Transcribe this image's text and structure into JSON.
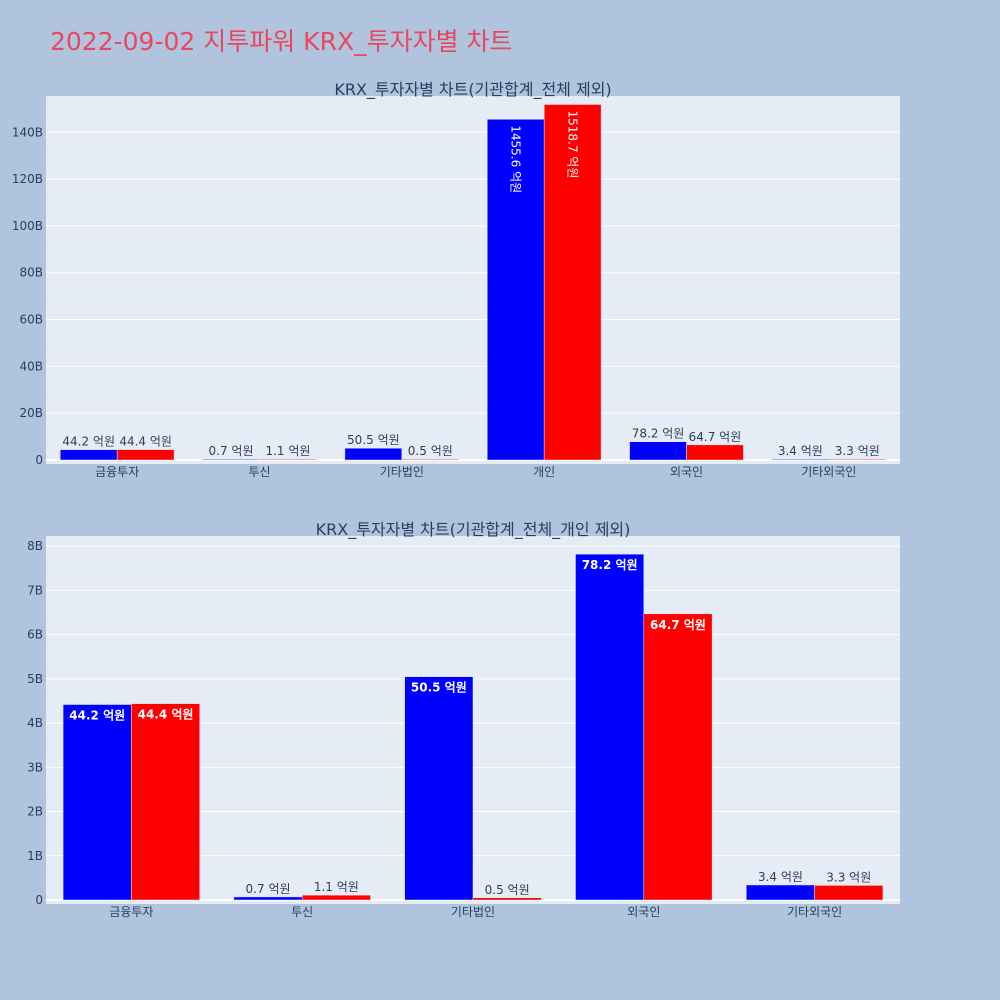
{
  "title": "2022-09-02 지투파워 KRX_투자자별 차트",
  "colors": {
    "page_background": "#b0c4de",
    "plot_background": "#e5ecf6",
    "grid": "#ffffff",
    "text": "#2a3f5f",
    "title": "#e8485f",
    "series_blue": "#0000ff",
    "series_red": "#ff0000"
  },
  "chart_data": [
    {
      "type": "bar",
      "title": "KRX_투자자별 차트(기관합계_전체 제외)",
      "categories": [
        "금융투자",
        "투신",
        "기타법인",
        "개인",
        "외국인",
        "기타외국인"
      ],
      "series": [
        {
          "values": [
            4.42,
            0.07,
            5.05,
            145.56,
            7.82,
            0.34
          ],
          "labels": [
            "44.2 억원",
            "0.7 억원",
            "50.5 억원",
            "1455.6 억원",
            "78.2 억원",
            "3.4 억원"
          ],
          "color": "#0000ff"
        },
        {
          "values": [
            4.44,
            0.11,
            0.05,
            151.87,
            6.47,
            0.33
          ],
          "labels": [
            "44.4 억원",
            "1.1 억원",
            "0.5 억원",
            "1518.7 억원",
            "64.7 억원",
            "3.3 억원"
          ],
          "color": "#ff0000"
        }
      ],
      "yticks": [
        0,
        20,
        40,
        60,
        80,
        100,
        120,
        140
      ],
      "ytick_labels": [
        "0",
        "20B",
        "40B",
        "60B",
        "80B",
        "100B",
        "120B",
        "140B"
      ],
      "ylim": [
        0,
        155.5
      ],
      "grid": true
    },
    {
      "type": "bar",
      "title": "KRX_투자자별 차트(기관합계_전체_개인 제외)",
      "categories": [
        "금융투자",
        "투신",
        "기타법인",
        "외국인",
        "기타외국인"
      ],
      "series": [
        {
          "values": [
            4.42,
            0.07,
            5.05,
            7.82,
            0.34
          ],
          "labels": [
            "44.2 억원",
            "0.7 억원",
            "50.5 억원",
            "78.2 억원",
            "3.4 억원"
          ],
          "color": "#0000ff"
        },
        {
          "values": [
            4.44,
            0.11,
            0.05,
            6.47,
            0.33
          ],
          "labels": [
            "44.4 억원",
            "1.1 억원",
            "0.5 억원",
            "64.7 억원",
            "3.3 억원"
          ],
          "color": "#ff0000"
        }
      ],
      "yticks": [
        0,
        1,
        2,
        3,
        4,
        5,
        6,
        7,
        8
      ],
      "ytick_labels": [
        "0",
        "1B",
        "2B",
        "3B",
        "4B",
        "5B",
        "6B",
        "7B",
        "8B"
      ],
      "ylim": [
        0,
        8.23
      ],
      "grid": true
    }
  ]
}
